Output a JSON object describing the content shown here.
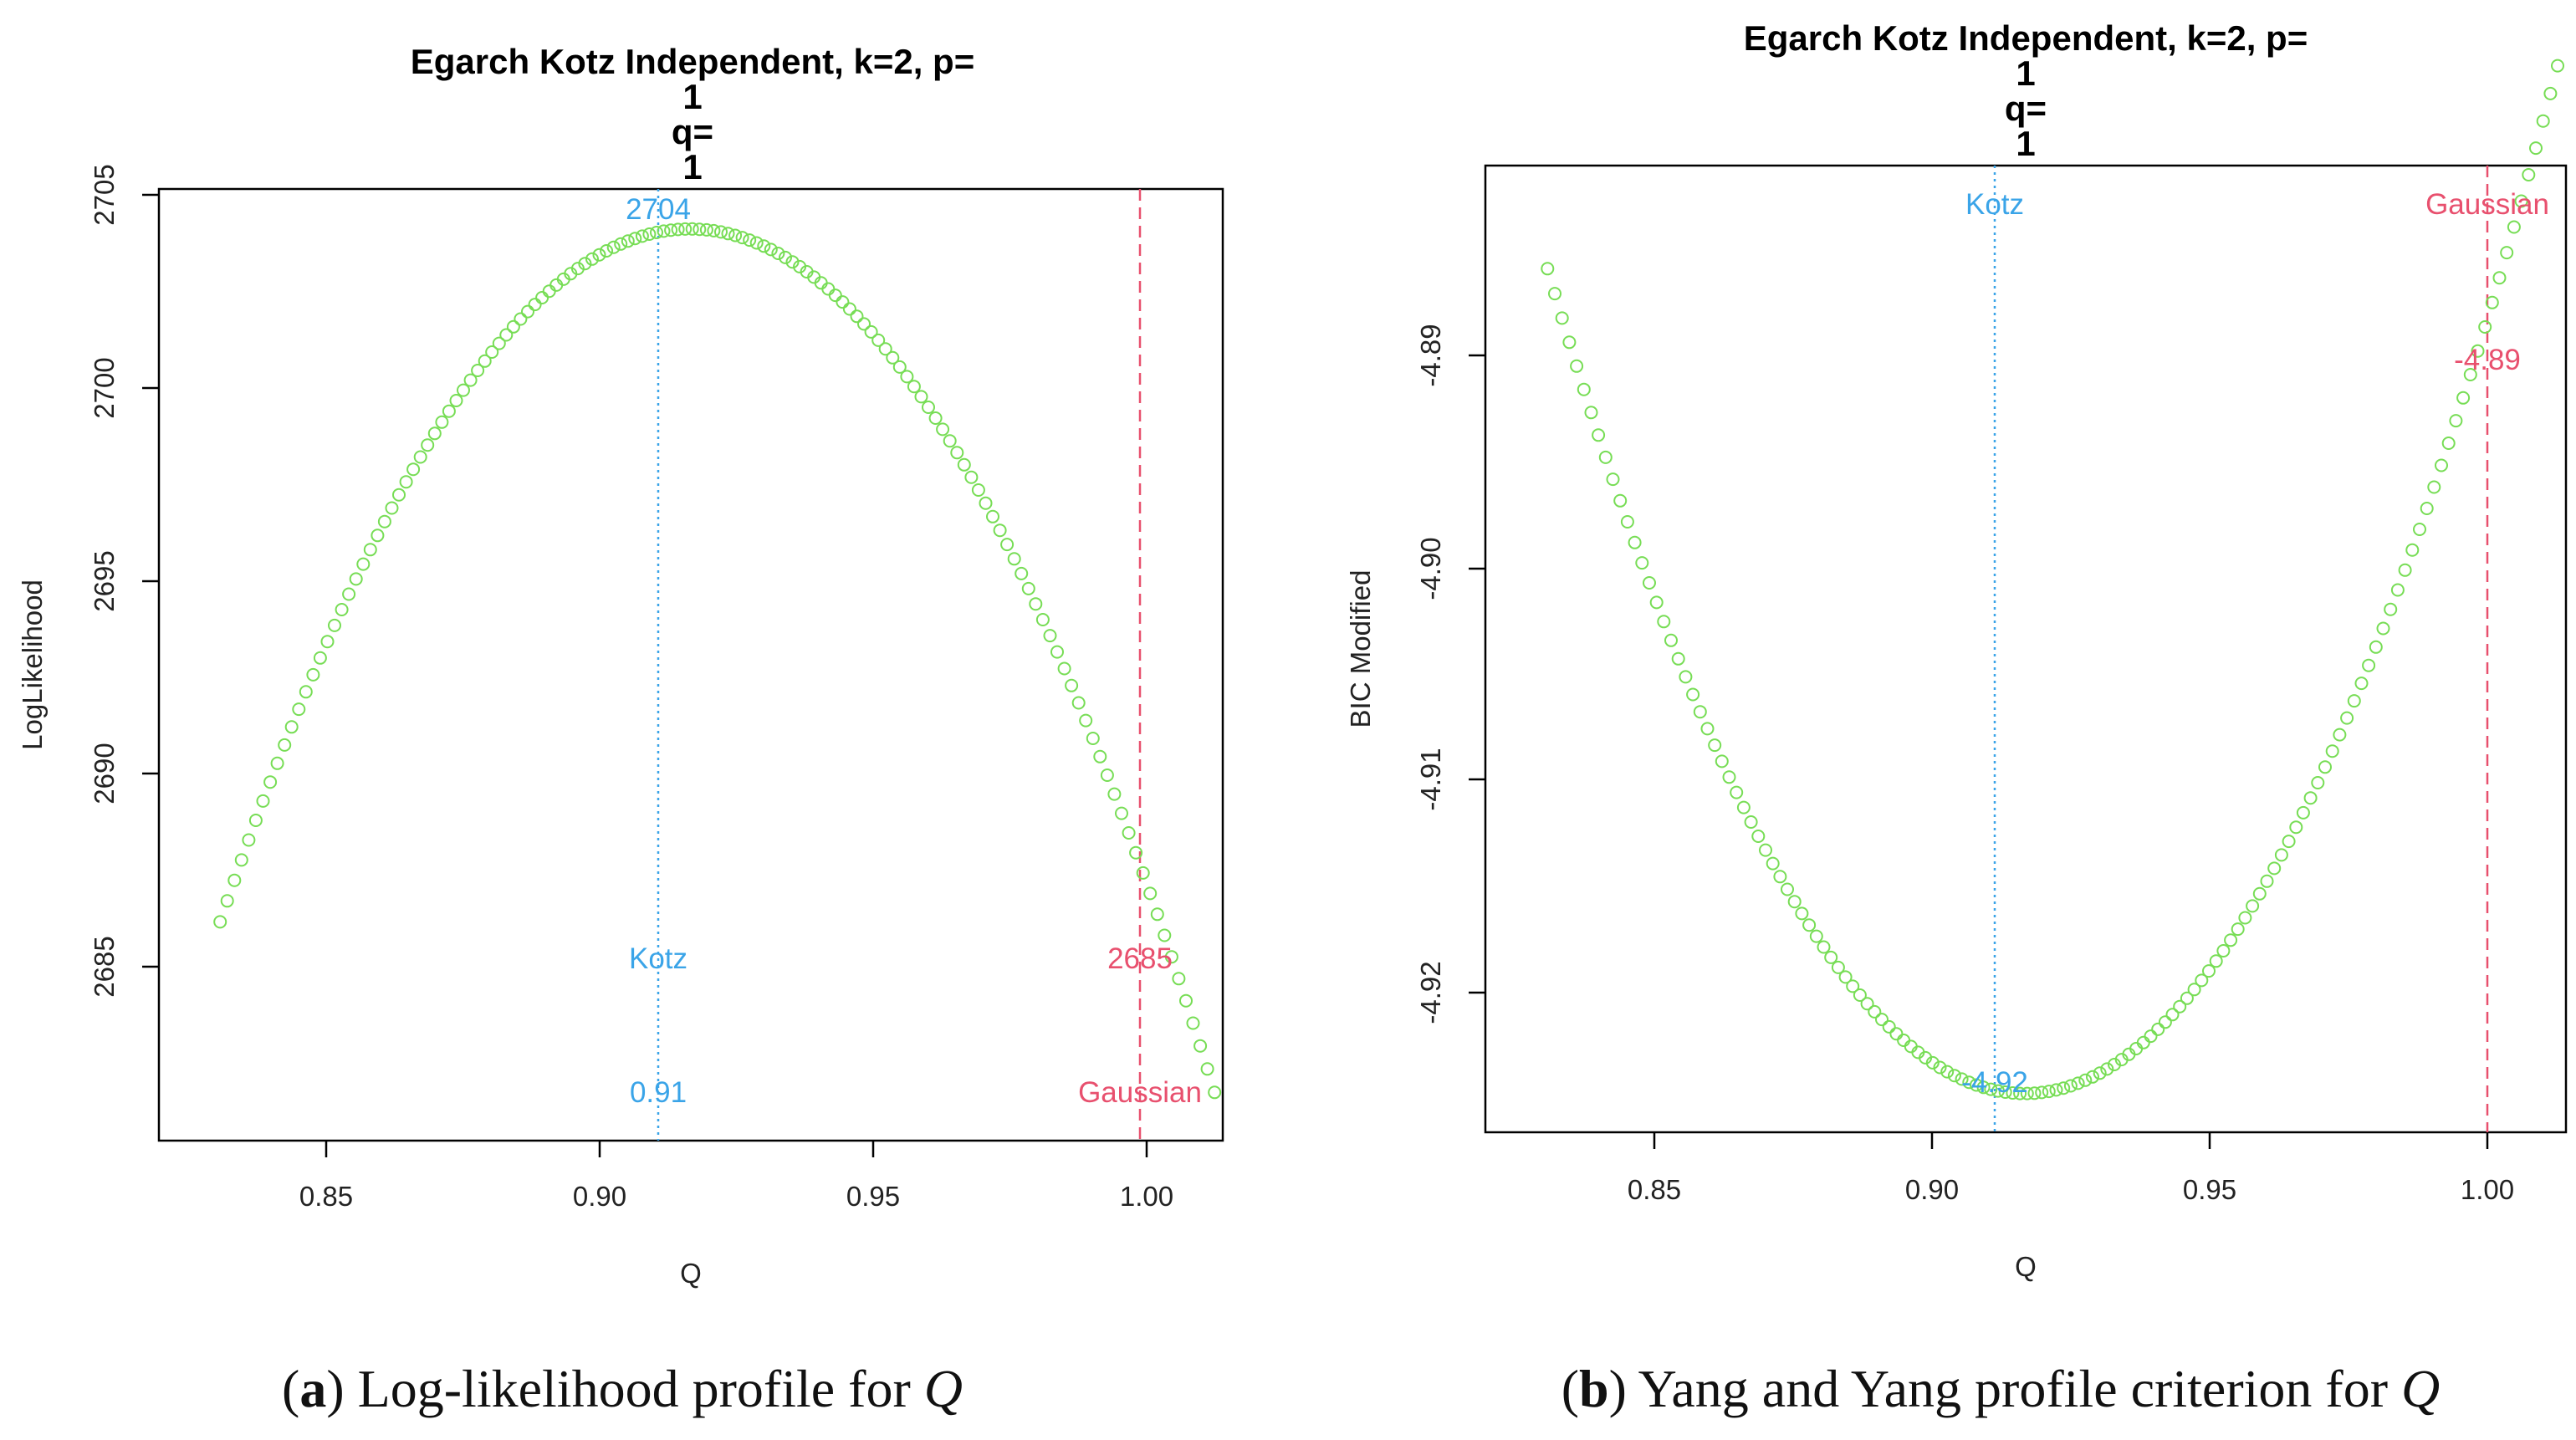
{
  "chart_data": [
    {
      "type": "scatter",
      "title_lines": [
        "Egarch Kotz Independent, k=2, p=",
        "1",
        "q=",
        "1"
      ],
      "xlabel": "Q",
      "ylabel": "LogLikelihood",
      "xlim": [
        0.8148,
        1.0095
      ],
      "ylim": [
        2679.6,
        2705.3
      ],
      "xticks": [
        "0.85",
        "0.90",
        "0.95",
        "1.00"
      ],
      "yticks": [
        "2685",
        "2690",
        "2695",
        "2700",
        "2705"
      ],
      "curve": {
        "kind": "parabola",
        "vertex_x": 0.912,
        "vertex_y": 2704.22,
        "curvature": -2530,
        "x_start": 0.826,
        "x_end": 1.008,
        "n_points": 140
      },
      "series_color": "#77dd55",
      "kotz": {
        "x": 0.912,
        "color": "#3aa4e8",
        "label": "Kotz",
        "top_value": "2704",
        "bottom_value": "0.91"
      },
      "gaussian": {
        "x": 1.0,
        "color": "#e8506e",
        "label": "Gaussian",
        "value": "2685"
      },
      "caption_letter": "a",
      "caption_text": " Log-likelihood profile for ",
      "caption_symbol": "Q"
    },
    {
      "type": "scatter",
      "title_lines": [
        "Egarch Kotz Independent, k=2, p=",
        "1",
        "q=",
        "1"
      ],
      "xlabel": "Q",
      "ylabel": "BIC Modified",
      "xlim": [
        0.8148,
        1.0095
      ],
      "ylim": [
        -4.9266,
        -4.8817
      ],
      "xticks": [
        "0.85",
        "0.90",
        "0.95",
        "1.00"
      ],
      "yticks": [
        "-4.92",
        "-4.91",
        "-4.90",
        "-4.89"
      ],
      "curve": {
        "kind": "parabola",
        "vertex_x": 0.912,
        "vertex_y": -4.9248,
        "curvature": 5.18,
        "x_start": 0.826,
        "x_end": 1.008,
        "n_points": 140
      },
      "series_color": "#77dd55",
      "kotz": {
        "x": 0.912,
        "color": "#3aa4e8",
        "label": "Kotz",
        "value": "-4.92"
      },
      "gaussian": {
        "x": 1.0,
        "color": "#e8506e",
        "label": "Gaussian",
        "value": "-4.89"
      },
      "caption_letter": "b",
      "caption_text": " Yang and Yang profile criterion for ",
      "caption_symbol": "Q"
    }
  ]
}
